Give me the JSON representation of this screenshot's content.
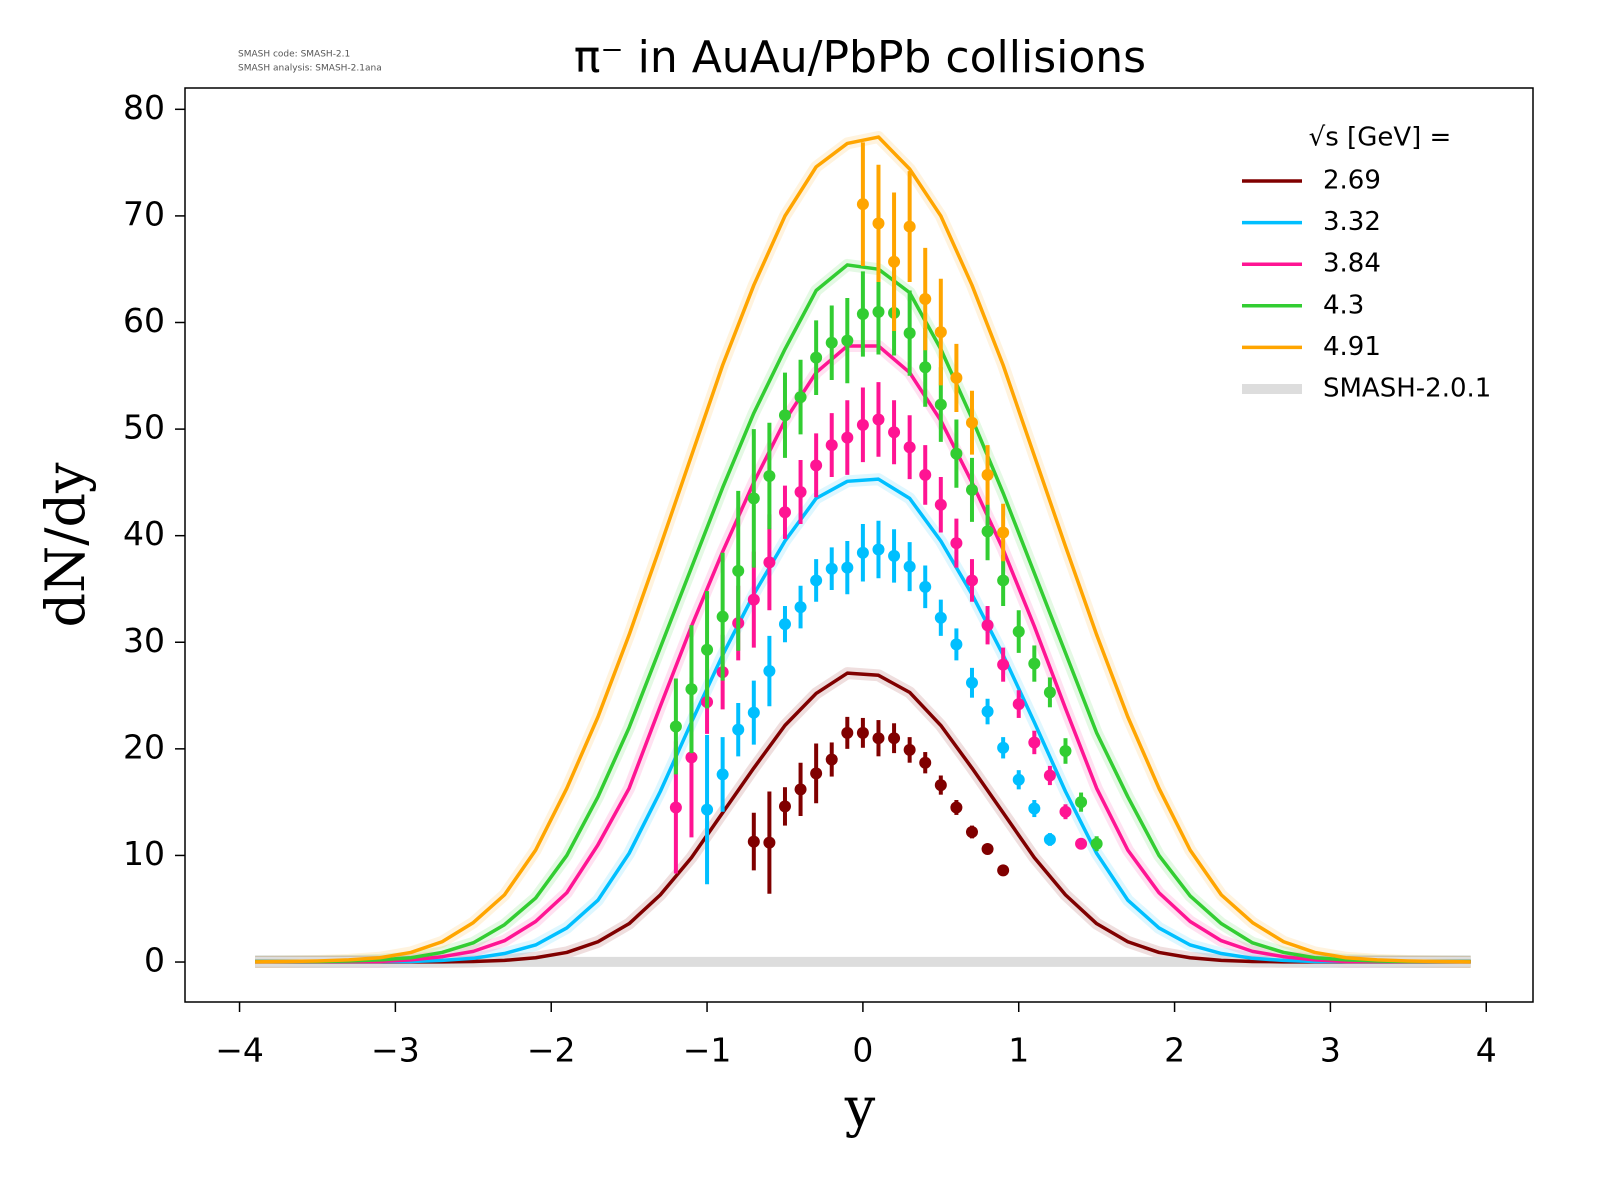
{
  "chart_data": {
    "type": "line",
    "title": "π⁻ in AuAu/PbPb collisions",
    "annotations": [
      "SMASH code:      SMASH-2.1",
      "SMASH analysis: SMASH-2.1ana"
    ],
    "x_label": "y",
    "y_label": "dN/dy",
    "legend_title": "√s  [GeV] =",
    "legend_position": "upper right",
    "band_label": "SMASH-2.0.1",
    "band_color": "#dddddd",
    "xlim": [
      -4.35,
      4.3
    ],
    "ylim": [
      -3.75,
      82
    ],
    "xticks": [
      {
        "value": -4,
        "label": "−4"
      },
      {
        "value": -3,
        "label": "−3"
      },
      {
        "value": -2,
        "label": "−2"
      },
      {
        "value": -1,
        "label": "−1"
      },
      0,
      1,
      2,
      3,
      4
    ],
    "yticks": [
      0,
      10,
      20,
      30,
      40,
      50,
      60,
      70,
      80
    ],
    "x": [
      -3.9,
      -3.7,
      -3.5,
      -3.3,
      -3.1,
      -2.9,
      -2.7,
      -2.5,
      -2.3,
      -2.1,
      -1.9,
      -1.7,
      -1.5,
      -1.3,
      -1.1,
      -0.9,
      -0.7,
      -0.5,
      -0.3,
      -0.1,
      0.1,
      0.3,
      0.5,
      0.7,
      0.9,
      1.1,
      1.3,
      1.5,
      1.7,
      1.9,
      2.1,
      2.3,
      2.5,
      2.7,
      2.9,
      3.1,
      3.3,
      3.5,
      3.7,
      3.9
    ],
    "series": [
      {
        "name": "2.69",
        "color": "#800000",
        "values": [
          0.02,
          0.02,
          0.02,
          0.02,
          0.02,
          0.02,
          0.02,
          0.05,
          0.15,
          0.4,
          0.9,
          1.9,
          3.6,
          6.3,
          9.8,
          14,
          18.2,
          22.2,
          25.2,
          27.1,
          26.9,
          25.3,
          22.2,
          18.2,
          14,
          9.8,
          6.3,
          3.6,
          1.9,
          0.9,
          0.4,
          0.15,
          0.05,
          0.02,
          0.02,
          0.02,
          0.02,
          0.02,
          0.02,
          0.02
        ],
        "points": {
          "x": [
            -0.7,
            -0.6,
            -0.5,
            -0.4,
            -0.3,
            -0.2,
            -0.1,
            0,
            0.1,
            0.2,
            0.3,
            0.4,
            0.5,
            0.6,
            0.7,
            0.8,
            0.9
          ],
          "values": [
            11.3,
            11.2,
            14.6,
            16.2,
            17.7,
            19,
            21.5,
            21.5,
            21,
            21,
            19.9,
            18.7,
            16.6,
            14.5,
            12.2,
            10.6,
            8.6
          ],
          "errors": [
            2.7,
            4.8,
            1.8,
            2.5,
            2.8,
            1.6,
            1.5,
            1.4,
            1.7,
            1.4,
            1.2,
            1,
            0.9,
            0.7,
            0.6,
            0.5,
            0.4
          ]
        }
      },
      {
        "name": "3.32",
        "color": "#00bfff",
        "values": [
          0.05,
          0.05,
          0.05,
          0.05,
          0.05,
          0.05,
          0.15,
          0.35,
          0.8,
          1.6,
          3.2,
          5.8,
          10.2,
          16,
          22.5,
          28.8,
          34.5,
          39.5,
          43.5,
          45.1,
          45.3,
          43.5,
          39.5,
          34.5,
          28.8,
          22.5,
          16,
          10.2,
          5.8,
          3.2,
          1.6,
          0.8,
          0.35,
          0.15,
          0.05,
          0.05,
          0.05,
          0.05,
          0.05,
          0.05
        ],
        "points": {
          "x": [
            -1.0,
            -0.9,
            -0.8,
            -0.7,
            -0.6,
            -0.5,
            -0.4,
            -0.3,
            -0.2,
            -0.1,
            0,
            0.1,
            0.2,
            0.3,
            0.4,
            0.5,
            0.6,
            0.7,
            0.8,
            0.9,
            1.0,
            1.1,
            1.2
          ],
          "values": [
            14.3,
            17.6,
            21.8,
            23.4,
            27.3,
            31.7,
            33.3,
            35.8,
            36.9,
            37,
            38.4,
            38.7,
            38.1,
            37.1,
            35.2,
            32.3,
            29.8,
            26.2,
            23.5,
            20.1,
            17.1,
            14.4,
            11.5
          ],
          "errors": [
            7,
            3.5,
            2.5,
            3,
            3.3,
            1.7,
            2,
            2,
            2,
            2.5,
            2.7,
            2.7,
            2.5,
            2.3,
            2,
            1.7,
            1.5,
            1.4,
            1.2,
            1,
            0.9,
            0.8,
            0.6
          ]
        }
      },
      {
        "name": "3.84",
        "color": "#ff1493",
        "values": [
          0.05,
          0.05,
          0.05,
          0.05,
          0.05,
          0.2,
          0.5,
          1,
          2,
          3.8,
          6.5,
          11,
          16.3,
          24,
          31.5,
          38.5,
          45,
          50.8,
          55.3,
          57.8,
          57.8,
          55.3,
          50.8,
          45,
          38.7,
          31.5,
          23.8,
          16.3,
          10.5,
          6.5,
          3.8,
          2,
          1,
          0.5,
          0.2,
          0.05,
          0.05,
          0.05,
          0.05,
          0.05
        ],
        "points": {
          "x": [
            -1.2,
            -1.1,
            -1.0,
            -0.9,
            -0.8,
            -0.7,
            -0.6,
            -0.5,
            -0.4,
            -0.3,
            -0.2,
            -0.1,
            0,
            0.1,
            0.2,
            0.3,
            0.4,
            0.5,
            0.6,
            0.7,
            0.8,
            0.9,
            1.0,
            1.1,
            1.2,
            1.3,
            1.4
          ],
          "values": [
            14.5,
            19.2,
            24.4,
            27.2,
            31.8,
            34,
            37.5,
            42.2,
            44.1,
            46.6,
            48.5,
            49.2,
            50.4,
            50.9,
            49.7,
            48.3,
            45.7,
            42.9,
            39.3,
            35.8,
            31.6,
            27.9,
            24.2,
            20.6,
            17.5,
            14.1,
            11.1
          ],
          "errors": [
            6.2,
            7.5,
            3,
            3.5,
            3.5,
            4.5,
            4.5,
            2.5,
            3,
            3,
            3,
            3.5,
            3.5,
            3.5,
            3,
            3,
            2.8,
            2.6,
            2.3,
            2,
            1.8,
            1.6,
            1.3,
            1.1,
            0.9,
            0.7,
            0.5
          ]
        }
      },
      {
        "name": "4.3",
        "color": "#32cd32",
        "values": [
          0.05,
          0.05,
          0.05,
          0.1,
          0.2,
          0.4,
          0.9,
          1.8,
          3.5,
          6,
          10,
          15.5,
          22,
          29.5,
          37,
          44.5,
          51.5,
          57.5,
          63,
          65.4,
          65,
          62.8,
          57.5,
          51,
          44,
          36.5,
          29,
          21.5,
          15.5,
          10,
          6.2,
          3.6,
          1.8,
          0.9,
          0.4,
          0.2,
          0.1,
          0.05,
          0.05,
          0.05
        ],
        "points": {
          "x": [
            -1.2,
            -1.1,
            -1.0,
            -0.9,
            -0.8,
            -0.7,
            -0.6,
            -0.5,
            -0.4,
            -0.3,
            -0.2,
            -0.1,
            0,
            0.1,
            0.2,
            0.3,
            0.4,
            0.5,
            0.6,
            0.7,
            0.8,
            0.9,
            1.0,
            1.1,
            1.2,
            1.3,
            1.4,
            1.5
          ],
          "values": [
            22.1,
            25.6,
            29.3,
            32.4,
            36.7,
            43.5,
            45.6,
            51.3,
            53,
            56.7,
            58.1,
            58.3,
            60.8,
            61,
            60.9,
            59,
            55.8,
            52.3,
            47.7,
            44.3,
            40.4,
            35.8,
            31,
            28,
            25.3,
            19.8,
            15,
            11.1
          ],
          "errors": [
            4.5,
            6,
            5.5,
            6,
            7.5,
            6.5,
            5,
            4,
            3.5,
            3.5,
            3.5,
            4,
            4,
            4,
            4,
            4,
            3.7,
            3.5,
            3.2,
            3,
            2.7,
            2.4,
            2,
            1.7,
            1.4,
            1.2,
            0.9,
            0.7
          ]
        }
      },
      {
        "name": "4.91",
        "color": "#ffa500",
        "values": [
          0.02,
          0.05,
          0.1,
          0.2,
          0.4,
          0.9,
          1.9,
          3.7,
          6.3,
          10.5,
          16.3,
          23,
          30.7,
          39,
          47.5,
          56,
          63.5,
          70,
          74.6,
          76.8,
          77.4,
          74.4,
          70,
          63.5,
          56,
          47.5,
          39,
          30.7,
          23,
          16.3,
          10.5,
          6.3,
          3.7,
          1.9,
          0.9,
          0.4,
          0.2,
          0.1,
          0.05,
          0.02
        ],
        "points": {
          "x": [
            0,
            0.1,
            0.2,
            0.3,
            0.4,
            0.5,
            0.6,
            0.7,
            0.8,
            0.9
          ],
          "values": [
            71.1,
            69.3,
            65.7,
            69,
            62.2,
            59.1,
            54.8,
            50.6,
            45.7,
            40.3
          ],
          "errors": [
            5.8,
            5.5,
            6.5,
            5.2,
            4.8,
            5,
            3.2,
            3,
            2.8,
            2.7
          ]
        }
      }
    ]
  }
}
